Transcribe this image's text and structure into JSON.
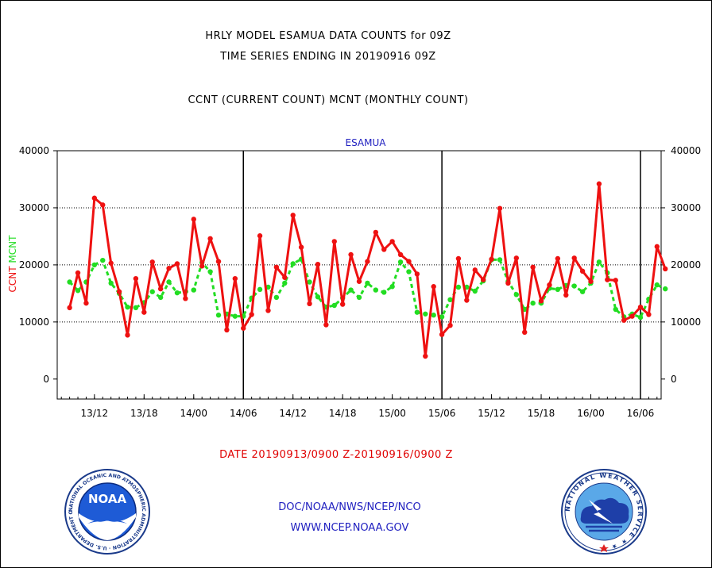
{
  "header": {
    "title_line1": "HRLY MODEL ESAMUA DATA COUNTS for 09Z",
    "title_line2": "TIME SERIES ENDING IN 20190916 09Z",
    "subtitle": "CCNT (CURRENT COUNT) MCNT (MONTHLY COUNT)"
  },
  "chart_data": {
    "type": "line",
    "title": "ESAMUA",
    "ylabel_left": [
      "CCNT",
      "MCNT"
    ],
    "ylim": [
      -3500,
      40000
    ],
    "y_ticks": [
      0,
      10000,
      20000,
      30000,
      40000
    ],
    "y_tick_labels": [
      "0",
      "10000",
      "20000",
      "30000",
      "40000"
    ],
    "x_hours_range": [
      -1.5,
      71.5
    ],
    "x_ticks": [
      {
        "hour": 3,
        "label": "13/12"
      },
      {
        "hour": 9,
        "label": "13/18"
      },
      {
        "hour": 15,
        "label": "14/00"
      },
      {
        "hour": 21,
        "label": "14/06"
      },
      {
        "hour": 27,
        "label": "14/12"
      },
      {
        "hour": 33,
        "label": "14/18"
      },
      {
        "hour": 39,
        "label": "15/00"
      },
      {
        "hour": 45,
        "label": "15/06"
      },
      {
        "hour": 51,
        "label": "15/12"
      },
      {
        "hour": 57,
        "label": "15/18"
      },
      {
        "hour": 63,
        "label": "16/00"
      },
      {
        "hour": 69,
        "label": "16/06"
      }
    ],
    "day_boundaries_hours": [
      21,
      45,
      69
    ],
    "grid": "horizontal dotted at 10000, 20000, 30000",
    "series": [
      {
        "name": "CCNT",
        "color": "#ee1111",
        "start": "20190913/0900",
        "values": [
          12500,
          18600,
          13300,
          31700,
          30500,
          20300,
          15300,
          7700,
          17600,
          11700,
          20500,
          15800,
          19400,
          20200,
          14100,
          28000,
          19800,
          24600,
          20600,
          8600,
          17600,
          8900,
          11300,
          25100,
          12000,
          19600,
          17800,
          28700,
          23100,
          13200,
          20100,
          9500,
          24100,
          13100,
          21800,
          17100,
          20600,
          25700,
          22700,
          24100,
          21800,
          20600,
          18400,
          4000,
          16200,
          7800,
          9400,
          21100,
          13800,
          19100,
          17400,
          21000,
          29900,
          16800,
          21200,
          8200,
          19600,
          13700,
          16500,
          21100,
          14700,
          21200,
          18900,
          17100,
          34200,
          17400,
          17300,
          10300,
          11000,
          12600,
          11300,
          23200,
          19300
        ]
      },
      {
        "name": "MCNT",
        "color": "#22dd22",
        "start": "20190913/0900",
        "values": [
          17000,
          15500,
          17000,
          20000,
          20800,
          16800,
          15000,
          12600,
          12500,
          13400,
          15300,
          14300,
          17000,
          15100,
          15300,
          15600,
          20400,
          18800,
          11200,
          11400,
          11000,
          11000,
          14200,
          15700,
          16100,
          14300,
          16800,
          20200,
          21000,
          17000,
          14400,
          12600,
          12900,
          14200,
          15600,
          14300,
          16800,
          15600,
          15200,
          16200,
          20500,
          18800,
          11700,
          11400,
          11200,
          10900,
          13900,
          16100,
          16100,
          15400,
          17200,
          20900,
          20900,
          17100,
          14800,
          12200,
          13300,
          13300,
          15900,
          15700,
          16400,
          16300,
          15300,
          16800,
          20500,
          18600,
          12200,
          10900,
          11400,
          10800,
          14000,
          16500,
          15800
        ]
      }
    ]
  },
  "footer": {
    "date_range": "DATE 20190913/0900 Z-20190916/0900 Z",
    "org_path": "DOC/NOAA/NWS/NCEP/NCO",
    "website": "WWW.NCEP.NOAA.GOV"
  },
  "logos": {
    "noaa_text": "NOAA",
    "noaa_ring_text": "NATIONAL OCEANIC AND ATMOSPHERIC ADMINISTRATION · U.S. DEPARTMENT OF COMMERCE ·",
    "nws_ring_text": "NATIONAL WEATHER SERVICE ★ ★"
  }
}
